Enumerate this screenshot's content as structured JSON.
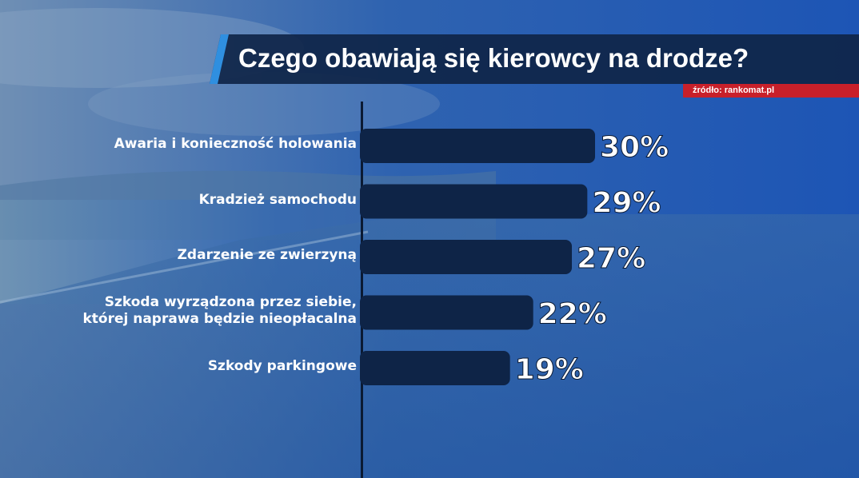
{
  "title": "Czego obawiają się kierowcy na drodze?",
  "source": "źródło: rankomat.pl",
  "colors": {
    "bar": "#0e2447",
    "title_bg": "#0f2548",
    "accent": "#2f8fe0",
    "source_bg": "#c8202a",
    "background": "#1f5fb8"
  },
  "chart_data": {
    "type": "bar",
    "orientation": "horizontal",
    "title": "Czego obawiają się kierowcy na drodze?",
    "categories": [
      "Awaria i konieczność holowania",
      "Kradzież samochodu",
      "Zdarzenie ze zwierzyną",
      "Szkoda wyrządzona przez siebie,\nktórej naprawa będzie nieopłacalna",
      "Szkody parkingowe"
    ],
    "values": [
      30,
      29,
      27,
      22,
      19
    ],
    "value_labels": [
      "30%",
      "29%",
      "27%",
      "22%",
      "19%"
    ],
    "unit": "%",
    "xlim": [
      0,
      30
    ],
    "grid": false,
    "legend": "none"
  }
}
